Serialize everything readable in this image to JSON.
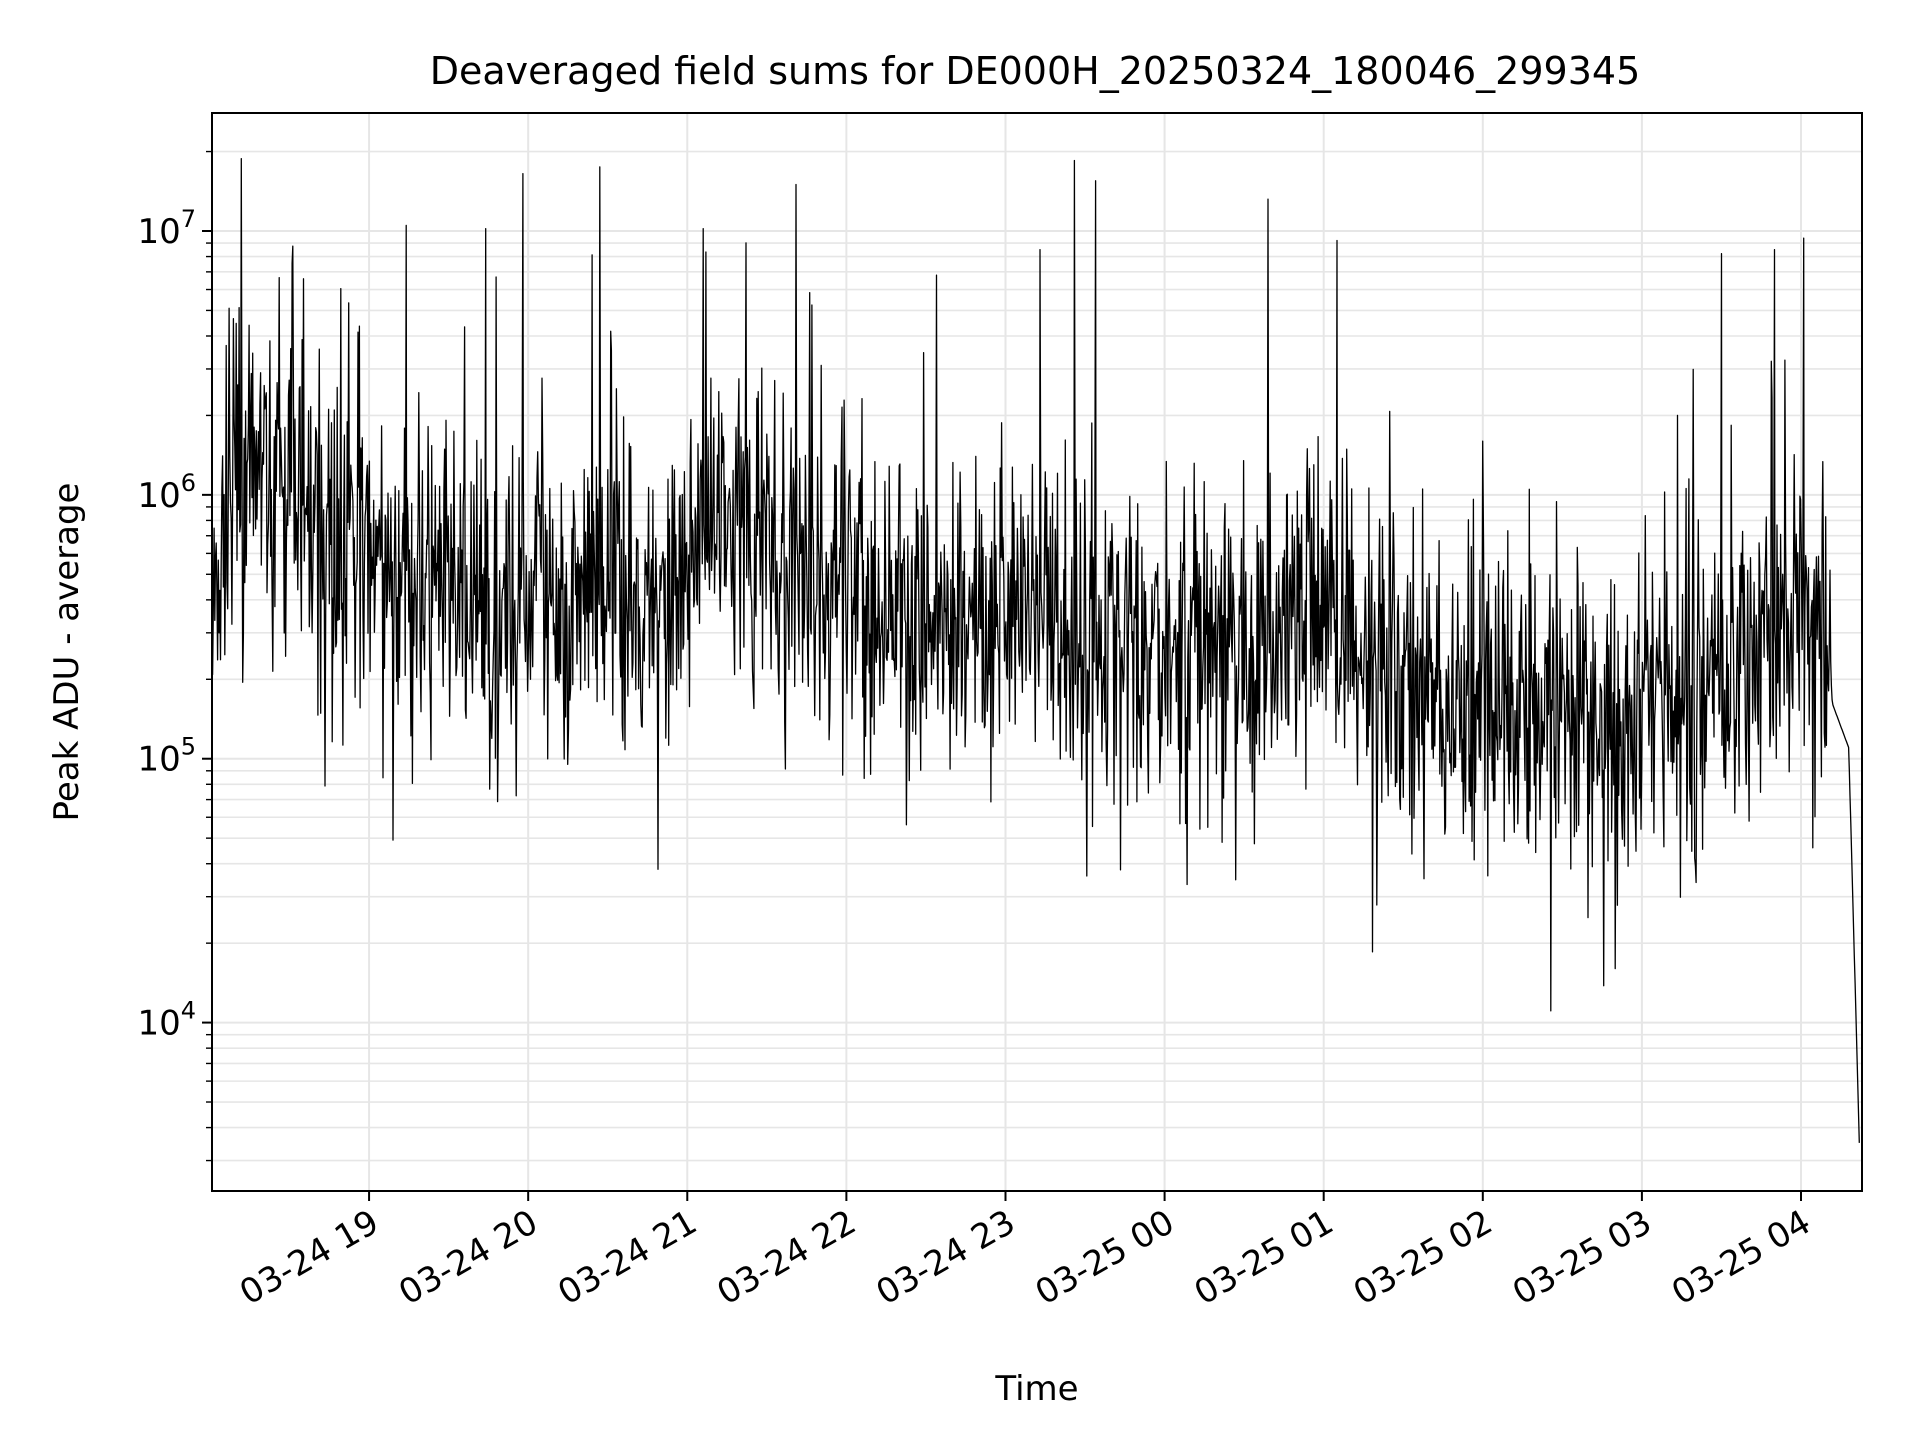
{
  "chart_data": {
    "type": "line",
    "title": "Deaveraged field sums for DE000H_20250324_180046_299345",
    "xlabel": "Time",
    "ylabel": "Peak ADU - average",
    "yscale": "log",
    "grid": true,
    "line_color": "#000000",
    "grid_color": "#e6e6e6",
    "xlim": [
      "2025-03-24T18:00:46",
      "2025-03-25T04:23:00"
    ],
    "ylim": [
      2300,
      28000000
    ],
    "x_ticks": [
      {
        "value": "2025-03-24T19:00:00",
        "label": "03-24 19"
      },
      {
        "value": "2025-03-24T20:00:00",
        "label": "03-24 20"
      },
      {
        "value": "2025-03-24T21:00:00",
        "label": "03-24 21"
      },
      {
        "value": "2025-03-24T22:00:00",
        "label": "03-24 22"
      },
      {
        "value": "2025-03-24T23:00:00",
        "label": "03-24 23"
      },
      {
        "value": "2025-03-25T00:00:00",
        "label": "03-25 00"
      },
      {
        "value": "2025-03-25T01:00:00",
        "label": "03-25 01"
      },
      {
        "value": "2025-03-25T02:00:00",
        "label": "03-25 02"
      },
      {
        "value": "2025-03-25T03:00:00",
        "label": "03-25 03"
      },
      {
        "value": "2025-03-25T04:00:00",
        "label": "03-25 04"
      }
    ],
    "y_ticks": [
      {
        "value": 10000,
        "base": "10",
        "exp": "4"
      },
      {
        "value": 100000,
        "base": "10",
        "exp": "5"
      },
      {
        "value": 1000000,
        "base": "10",
        "exp": "6"
      },
      {
        "value": 10000000,
        "base": "10",
        "exp": "7"
      }
    ],
    "series": [
      {
        "x": [
          "2025-03-24T18:01:00",
          "2025-03-24T18:06:00",
          "2025-03-24T18:10:00",
          "2025-03-24T18:12:00",
          "2025-03-24T18:20:00",
          "2025-03-24T18:30:00",
          "2025-03-24T18:40:00",
          "2025-03-24T18:50:00",
          "2025-03-24T19:00:00",
          "2025-03-24T19:10:00",
          "2025-03-24T19:20:00",
          "2025-03-24T19:30:00",
          "2025-03-24T19:40:00",
          "2025-03-24T19:50:00",
          "2025-03-24T19:58:00",
          "2025-03-24T20:10:00",
          "2025-03-24T20:20:00",
          "2025-03-24T20:30:00",
          "2025-03-24T20:40:00",
          "2025-03-24T20:50:00",
          "2025-03-24T21:00:00",
          "2025-03-24T21:10:00",
          "2025-03-24T21:20:00",
          "2025-03-24T21:30:00",
          "2025-03-24T21:40:00",
          "2025-03-24T21:50:00",
          "2025-03-24T22:00:00",
          "2025-03-24T22:10:00",
          "2025-03-24T22:20:00",
          "2025-03-24T22:30:00",
          "2025-03-24T22:40:00",
          "2025-03-24T22:50:00",
          "2025-03-24T23:00:00",
          "2025-03-24T23:10:00",
          "2025-03-24T23:20:00",
          "2025-03-24T23:30:00",
          "2025-03-24T23:40:00",
          "2025-03-24T23:50:00",
          "2025-03-25T00:00:00",
          "2025-03-25T00:10:00",
          "2025-03-25T00:20:00",
          "2025-03-25T00:30:00",
          "2025-03-25T00:40:00",
          "2025-03-25T00:50:00",
          "2025-03-25T01:00:00",
          "2025-03-25T01:10:00",
          "2025-03-25T01:20:00",
          "2025-03-25T01:30:00",
          "2025-03-25T01:40:00",
          "2025-03-25T01:50:00",
          "2025-03-25T02:00:00",
          "2025-03-25T02:10:00",
          "2025-03-25T02:20:00",
          "2025-03-25T02:30:00",
          "2025-03-25T02:40:00",
          "2025-03-25T02:50:00",
          "2025-03-25T03:00:00",
          "2025-03-25T03:10:00",
          "2025-03-25T03:20:00",
          "2025-03-25T03:30:00",
          "2025-03-25T03:40:00",
          "2025-03-25T03:50:00",
          "2025-03-25T04:00:00",
          "2025-03-25T04:06:00",
          "2025-03-25T04:12:00",
          "2025-03-25T04:18:00",
          "2025-03-25T04:22:00"
        ],
        "y": [
          300000,
          800000,
          1100000,
          1000000,
          1200000,
          1050000,
          800000,
          700000,
          600000,
          450000,
          500000,
          400000,
          350000,
          350000,
          380000,
          400000,
          450000,
          500000,
          450000,
          400000,
          550000,
          900000,
          800000,
          600000,
          500000,
          420000,
          380000,
          330000,
          320000,
          320000,
          300000,
          320000,
          400000,
          380000,
          300000,
          270000,
          280000,
          290000,
          300000,
          300000,
          270000,
          250000,
          280000,
          320000,
          360000,
          310000,
          220000,
          200000,
          170000,
          160000,
          170000,
          150000,
          150000,
          140000,
          130000,
          130000,
          140000,
          150000,
          170000,
          200000,
          250000,
          320000,
          420000,
          400000,
          160000,
          110000,
          3500
        ],
        "peaks": [
          {
            "x": "2025-03-24T19:14:00",
            "y": 10500000
          },
          {
            "x": "2025-03-24T19:44:00",
            "y": 10200000
          },
          {
            "x": "2025-03-24T19:58:00",
            "y": 16500000
          },
          {
            "x": "2025-03-24T20:27:00",
            "y": 17500000
          },
          {
            "x": "2025-03-24T21:06:00",
            "y": 10200000
          },
          {
            "x": "2025-03-24T21:41:00",
            "y": 15000000
          },
          {
            "x": "2025-03-24T22:34:00",
            "y": 6800000
          },
          {
            "x": "2025-03-24T23:13:00",
            "y": 8500000
          },
          {
            "x": "2025-03-24T23:26:00",
            "y": 18500000
          },
          {
            "x": "2025-03-24T23:34:00",
            "y": 15500000
          },
          {
            "x": "2025-03-25T00:39:00",
            "y": 13200000
          },
          {
            "x": "2025-03-25T01:05:00",
            "y": 9200000
          },
          {
            "x": "2025-03-25T03:30:00",
            "y": 8200000
          },
          {
            "x": "2025-03-25T03:50:00",
            "y": 8500000
          },
          {
            "x": "2025-03-25T04:01:00",
            "y": 9400000
          }
        ]
      }
    ]
  }
}
